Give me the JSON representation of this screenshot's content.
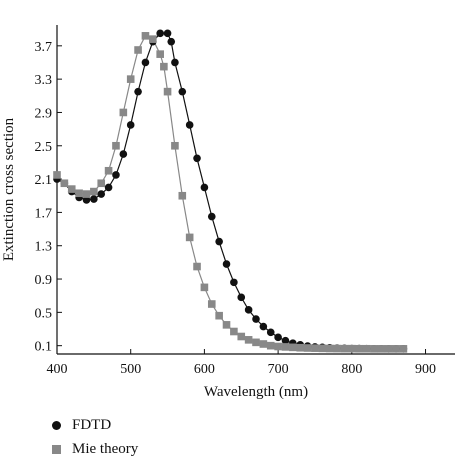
{
  "chart_data": {
    "type": "line",
    "xlabel": "Wavelength (nm)",
    "ylabel": "Extinction cross section",
    "xlim": [
      400,
      940
    ],
    "ylim": [
      0.0,
      3.95
    ],
    "xticks": [
      "400",
      "500",
      "600",
      "700",
      "800",
      "900"
    ],
    "yticks": [
      "0.1",
      "0.5",
      "0.9",
      "1.3",
      "1.7",
      "2.1",
      "2.5",
      "2.9",
      "3.3",
      "3.7"
    ],
    "grid": false,
    "legend_position": "bottom-left",
    "series": [
      {
        "name": "FDTD",
        "color": "#111111",
        "marker": "circle",
        "x": [
          400,
          410,
          420,
          430,
          440,
          450,
          460,
          470,
          480,
          490,
          500,
          510,
          520,
          530,
          540,
          550,
          555,
          560,
          570,
          580,
          590,
          600,
          610,
          620,
          630,
          640,
          650,
          660,
          670,
          680,
          690,
          700,
          710,
          720,
          730,
          740,
          750,
          760,
          770,
          780,
          790,
          800,
          810,
          820,
          830,
          840,
          850,
          860,
          870
        ],
        "y": [
          2.1,
          2.05,
          1.95,
          1.88,
          1.85,
          1.86,
          1.92,
          2.0,
          2.15,
          2.4,
          2.75,
          3.15,
          3.5,
          3.75,
          3.85,
          3.85,
          3.75,
          3.5,
          3.15,
          2.75,
          2.35,
          2.0,
          1.65,
          1.35,
          1.08,
          0.86,
          0.68,
          0.53,
          0.42,
          0.33,
          0.26,
          0.2,
          0.16,
          0.13,
          0.11,
          0.095,
          0.085,
          0.08,
          0.075,
          0.07,
          0.068,
          0.066,
          0.065,
          0.064,
          0.063,
          0.063,
          0.062,
          0.062,
          0.062
        ]
      },
      {
        "name": "Mie theory",
        "color": "#888888",
        "marker": "square",
        "x": [
          400,
          410,
          420,
          430,
          440,
          450,
          460,
          470,
          480,
          490,
          500,
          510,
          520,
          530,
          540,
          545,
          550,
          560,
          570,
          580,
          590,
          600,
          610,
          620,
          630,
          640,
          650,
          660,
          670,
          680,
          690,
          700,
          710,
          720,
          730,
          740,
          750,
          760,
          770,
          780,
          790,
          800,
          810,
          820,
          830,
          840,
          850,
          860,
          870
        ],
        "y": [
          2.15,
          2.05,
          1.98,
          1.93,
          1.92,
          1.95,
          2.05,
          2.2,
          2.5,
          2.9,
          3.3,
          3.65,
          3.82,
          3.78,
          3.6,
          3.45,
          3.15,
          2.5,
          1.9,
          1.4,
          1.05,
          0.8,
          0.6,
          0.46,
          0.35,
          0.27,
          0.21,
          0.17,
          0.14,
          0.12,
          0.1,
          0.09,
          0.085,
          0.08,
          0.075,
          0.072,
          0.07,
          0.068,
          0.066,
          0.065,
          0.064,
          0.064,
          0.063,
          0.063,
          0.062,
          0.062,
          0.062,
          0.062,
          0.062
        ]
      }
    ]
  }
}
